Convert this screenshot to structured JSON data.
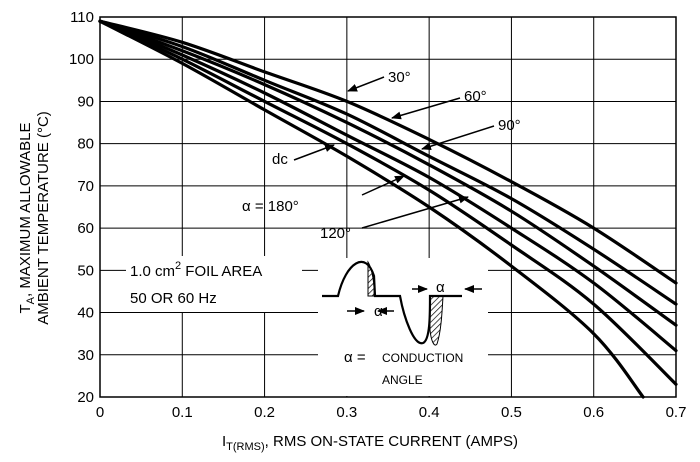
{
  "chart_data": {
    "type": "line",
    "xlabel": {
      "main": "I",
      "sub": "T(RMS)",
      "rest": ", RMS ON-STATE CURRENT (AMPS)"
    },
    "ylabel": {
      "line1_main": "T",
      "line1_sub": "A",
      "line1_rest": ", MAXIMUM ALLOWABLE",
      "line2": "AMBIENT TEMPERATURE (°C)"
    },
    "xlim": [
      0,
      0.7
    ],
    "ylim": [
      20,
      110
    ],
    "xticks": [
      0,
      0.1,
      0.2,
      0.3,
      0.4,
      0.5,
      0.6,
      0.7
    ],
    "yticks": [
      20,
      30,
      40,
      50,
      60,
      70,
      80,
      90,
      100,
      110
    ],
    "xtick_labels": [
      "0",
      "0.1",
      "0.2",
      "0.3",
      "0.4",
      "0.5",
      "0.6",
      "0.7"
    ],
    "ytick_labels": [
      "20",
      "30",
      "40",
      "50",
      "60",
      "70",
      "80",
      "90",
      "100",
      "110"
    ],
    "grid": true,
    "series": [
      {
        "name": "30°",
        "x": [
          0,
          0.1,
          0.2,
          0.3,
          0.4,
          0.5,
          0.6,
          0.7
        ],
        "y": [
          109,
          104,
          97,
          90,
          81,
          71,
          60,
          47
        ]
      },
      {
        "name": "60°",
        "x": [
          0,
          0.1,
          0.2,
          0.3,
          0.4,
          0.5,
          0.6,
          0.7
        ],
        "y": [
          109,
          103,
          95,
          87,
          77,
          67,
          55,
          42
        ]
      },
      {
        "name": "90°",
        "x": [
          0,
          0.1,
          0.2,
          0.3,
          0.4,
          0.5,
          0.6,
          0.7
        ],
        "y": [
          109,
          102,
          94,
          85,
          75,
          64,
          51,
          37
        ]
      },
      {
        "name": "120°",
        "x": [
          0,
          0.1,
          0.2,
          0.3,
          0.4,
          0.5,
          0.6,
          0.7
        ],
        "y": [
          109,
          101,
          92,
          82,
          72,
          60,
          47,
          31
        ]
      },
      {
        "name": "α = 180°",
        "x": [
          0,
          0.1,
          0.2,
          0.3,
          0.4,
          0.5,
          0.6,
          0.7
        ],
        "y": [
          109,
          100,
          90,
          80,
          69,
          56,
          42,
          23
        ]
      },
      {
        "name": "dc",
        "x": [
          0,
          0.1,
          0.2,
          0.3,
          0.4,
          0.5,
          0.6,
          0.66
        ],
        "y": [
          109,
          99,
          88,
          77,
          65,
          51,
          35,
          20
        ]
      }
    ],
    "annotations": {
      "foil_area_line1_pre": "1.0 cm",
      "foil_area_line1_sup": "2",
      "foil_area_line1_post": " FOIL AREA",
      "frequency": "50 OR 60 Hz",
      "alpha_symbol": "α",
      "conduction_prefix": "α =",
      "conduction_line1": "CONDUCTION",
      "conduction_line2": "ANGLE"
    }
  }
}
